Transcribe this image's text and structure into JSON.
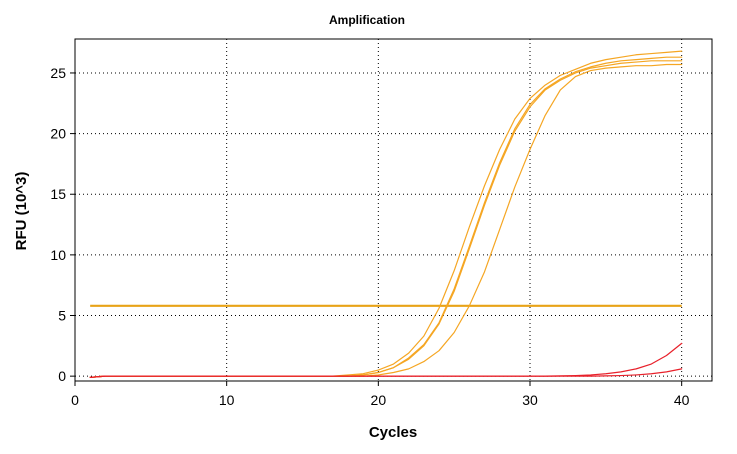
{
  "chart_data": {
    "type": "line",
    "title": "Amplification",
    "xlabel": "Cycles",
    "ylabel": "RFU (10^3)",
    "xlim": [
      0,
      42
    ],
    "ylim": [
      -0.4,
      27.8
    ],
    "xticks": [
      0,
      10,
      20,
      30,
      40
    ],
    "yticks": [
      0,
      5,
      10,
      15,
      20,
      25
    ],
    "grid": true,
    "colors": {
      "amplification": "#F5A623",
      "negative": "#E8202A",
      "threshold": "#E8A317"
    },
    "threshold": {
      "value": 5.8,
      "x_range": [
        1,
        40
      ]
    },
    "series": [
      {
        "color": "#F5A623",
        "x": [
          1,
          2,
          3,
          4,
          5,
          6,
          7,
          8,
          9,
          10,
          11,
          12,
          13,
          14,
          15,
          16,
          17,
          18,
          19,
          20,
          21,
          22,
          23,
          24,
          25,
          26,
          27,
          28,
          29,
          30,
          31,
          32,
          33,
          34,
          35,
          36,
          37,
          38,
          39,
          40
        ],
        "y": [
          -0.1,
          0,
          0,
          0,
          0,
          0,
          0,
          0,
          0,
          0,
          0,
          0,
          0,
          0,
          0,
          0,
          0,
          0.1,
          0.2,
          0.5,
          1.0,
          1.9,
          3.3,
          5.6,
          8.7,
          12.3,
          15.7,
          18.7,
          21.2,
          22.9,
          24.0,
          24.8,
          25.3,
          25.8,
          26.1,
          26.3,
          26.5,
          26.6,
          26.7,
          26.8
        ]
      },
      {
        "color": "#F5A623",
        "x": [
          1,
          2,
          3,
          4,
          5,
          6,
          7,
          8,
          9,
          10,
          11,
          12,
          13,
          14,
          15,
          16,
          17,
          18,
          19,
          20,
          21,
          22,
          23,
          24,
          25,
          26,
          27,
          28,
          29,
          30,
          31,
          32,
          33,
          34,
          35,
          36,
          37,
          38,
          39,
          40
        ],
        "y": [
          -0.1,
          0,
          0,
          0,
          0,
          0,
          0,
          0,
          0,
          0,
          0,
          0,
          0,
          0,
          0,
          0,
          0,
          0,
          0.1,
          0.3,
          0.7,
          1.5,
          2.6,
          4.4,
          7.2,
          10.7,
          14.3,
          17.6,
          20.4,
          22.4,
          23.7,
          24.5,
          25.1,
          25.5,
          25.8,
          26.0,
          26.1,
          26.2,
          26.3,
          26.3
        ]
      },
      {
        "color": "#F5A623",
        "x": [
          1,
          2,
          3,
          4,
          5,
          6,
          7,
          8,
          9,
          10,
          11,
          12,
          13,
          14,
          15,
          16,
          17,
          18,
          19,
          20,
          21,
          22,
          23,
          24,
          25,
          26,
          27,
          28,
          29,
          30,
          31,
          32,
          33,
          34,
          35,
          36,
          37,
          38,
          39,
          40
        ],
        "y": [
          -0.1,
          0,
          0,
          0,
          0,
          0,
          0,
          0,
          0,
          0,
          0,
          0,
          0,
          0,
          0,
          0,
          0,
          0,
          0.1,
          0.3,
          0.7,
          1.4,
          2.5,
          4.3,
          7.0,
          10.5,
          14.1,
          17.4,
          20.2,
          22.2,
          23.6,
          24.4,
          25.0,
          25.4,
          25.6,
          25.8,
          25.9,
          26.0,
          26.0,
          26.0
        ]
      },
      {
        "color": "#F5A623",
        "x": [
          1,
          2,
          3,
          4,
          5,
          6,
          7,
          8,
          9,
          10,
          11,
          12,
          13,
          14,
          15,
          16,
          17,
          18,
          19,
          20,
          21,
          22,
          23,
          24,
          25,
          26,
          27,
          28,
          29,
          30,
          31,
          32,
          33,
          34,
          35,
          36,
          37,
          38,
          39,
          40
        ],
        "y": [
          -0.1,
          0,
          0,
          0,
          0,
          0,
          0,
          0,
          0,
          0,
          0,
          0,
          0,
          0,
          0,
          0,
          0,
          0,
          0,
          0.1,
          0.3,
          0.6,
          1.2,
          2.1,
          3.6,
          5.8,
          8.6,
          12.1,
          15.6,
          18.7,
          21.5,
          23.6,
          24.7,
          25.2,
          25.4,
          25.5,
          25.6,
          25.6,
          25.7,
          25.7
        ]
      },
      {
        "color": "#E8202A",
        "x": [
          1,
          2,
          3,
          4,
          5,
          6,
          7,
          8,
          9,
          10,
          11,
          12,
          13,
          14,
          15,
          16,
          17,
          18,
          19,
          20,
          21,
          22,
          23,
          24,
          25,
          26,
          27,
          28,
          29,
          30,
          31,
          32,
          33,
          34,
          35,
          36,
          37,
          38,
          39,
          40
        ],
        "y": [
          -0.1,
          0,
          0,
          0,
          0,
          0,
          0,
          0,
          0,
          0,
          0,
          0,
          0,
          0,
          0,
          0,
          0,
          0,
          0,
          0,
          0,
          0,
          0,
          0,
          0,
          0,
          0,
          0,
          0,
          0,
          0,
          0.02,
          0.05,
          0.1,
          0.2,
          0.35,
          0.6,
          1.0,
          1.7,
          2.7
        ]
      },
      {
        "color": "#E8202A",
        "x": [
          1,
          2,
          3,
          4,
          5,
          6,
          7,
          8,
          9,
          10,
          11,
          12,
          13,
          14,
          15,
          16,
          17,
          18,
          19,
          20,
          21,
          22,
          23,
          24,
          25,
          26,
          27,
          28,
          29,
          30,
          31,
          32,
          33,
          34,
          35,
          36,
          37,
          38,
          39,
          40
        ],
        "y": [
          -0.1,
          0,
          0,
          0,
          0,
          0,
          0,
          0,
          0,
          0,
          0,
          0,
          0,
          0,
          0,
          0,
          0,
          0,
          0,
          0,
          0,
          0,
          0,
          0,
          0,
          0,
          0,
          0,
          0,
          0,
          0,
          0,
          0,
          0,
          0.02,
          0.05,
          0.1,
          0.2,
          0.35,
          0.6
        ]
      }
    ]
  }
}
